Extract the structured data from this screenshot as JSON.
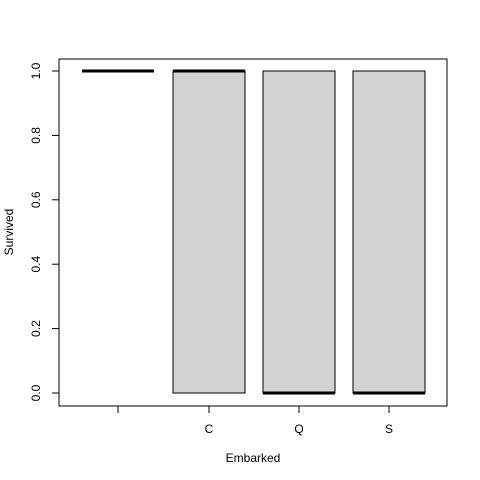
{
  "chart_data": {
    "type": "boxplot",
    "categories": [
      "",
      "C",
      "Q",
      "S"
    ],
    "boxes": [
      {
        "category": "",
        "lower_hinge": 1,
        "median": 1,
        "upper_hinge": 1
      },
      {
        "category": "C",
        "lower_hinge": 0,
        "median": 1,
        "upper_hinge": 1
      },
      {
        "category": "Q",
        "lower_hinge": 0,
        "median": 0,
        "upper_hinge": 1
      },
      {
        "category": "S",
        "lower_hinge": 0,
        "median": 0,
        "upper_hinge": 1
      }
    ],
    "xlabel": "Embarked",
    "ylabel": "Survived",
    "ylim": [
      0,
      1
    ],
    "yticks": [
      "0.0",
      "0.2",
      "0.4",
      "0.6",
      "0.8",
      "1.0"
    ],
    "grid": false,
    "colors": {
      "box_fill": "#d3d3d3",
      "stroke": "#000000",
      "background": "#ffffff"
    }
  }
}
